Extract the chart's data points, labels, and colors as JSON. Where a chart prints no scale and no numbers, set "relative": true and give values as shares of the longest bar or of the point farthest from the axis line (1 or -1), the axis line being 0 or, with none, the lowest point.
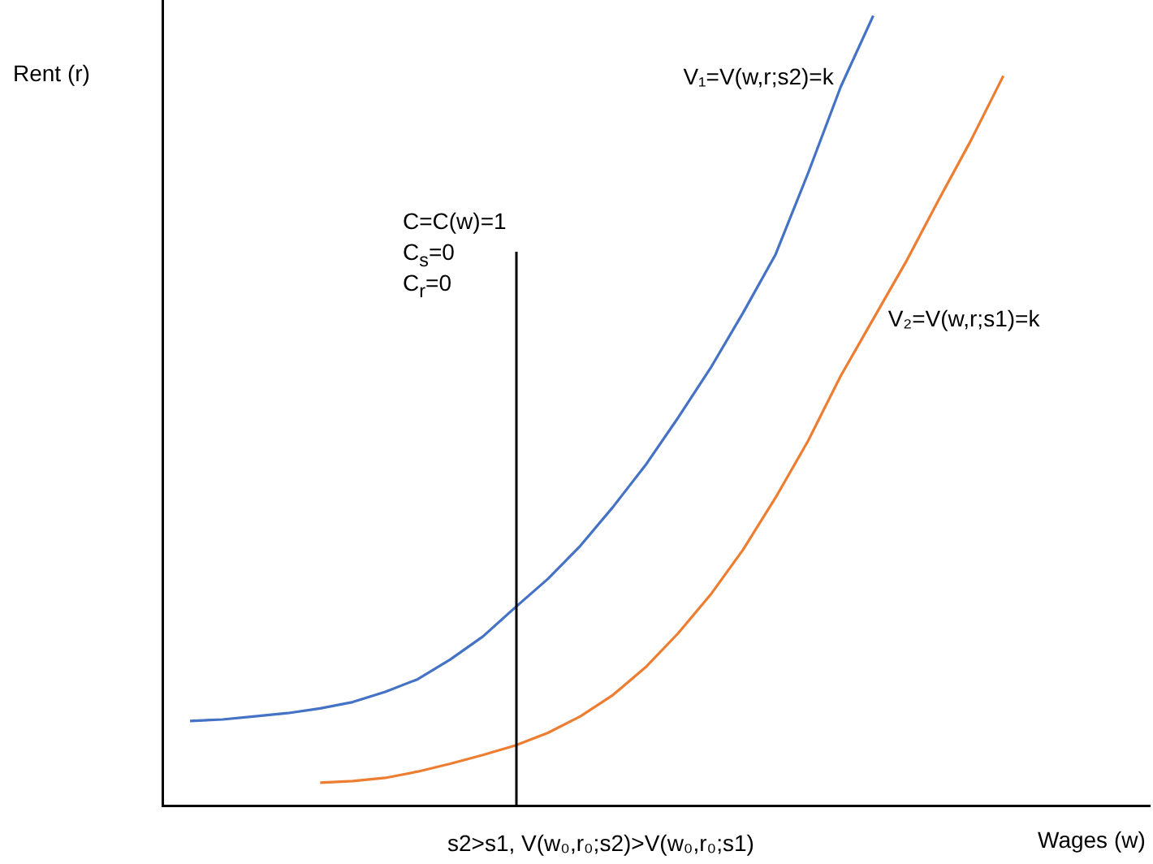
{
  "chart_data": {
    "type": "line",
    "relative": true,
    "xlabel": "Wages (w)",
    "ylabel": "Rent (r)",
    "categories": [
      null,
      null,
      null,
      null,
      null,
      null,
      null,
      null,
      null,
      null,
      null,
      null,
      null,
      null,
      null,
      null,
      null,
      null,
      null,
      null,
      null,
      null,
      null,
      null,
      null,
      null
    ],
    "series": [
      {
        "name": "V₁=V(w,r;s2)=k",
        "color": "#4472c4",
        "values": [
          0.107,
          0.109,
          0.113,
          0.117,
          0.123,
          0.131,
          0.144,
          0.16,
          0.185,
          0.214,
          0.251,
          0.287,
          0.329,
          0.378,
          0.431,
          0.491,
          0.554,
          0.624,
          0.698,
          0.801,
          0.91,
          1.0,
          null,
          null,
          null,
          null
        ]
      },
      {
        "name": "V₂=V(w,r;s1)=k",
        "color": "#ed7d31",
        "values": [
          null,
          null,
          null,
          null,
          0.029,
          0.031,
          0.035,
          0.043,
          0.053,
          0.064,
          0.076,
          0.092,
          0.113,
          0.14,
          0.175,
          0.218,
          0.267,
          0.324,
          0.39,
          0.462,
          0.544,
          0.616,
          0.688,
          0.766,
          0.842,
          0.924
        ]
      }
    ],
    "annotations": [
      "C=C(w)=1",
      "C$_{s}$=0",
      "C$_{r}$=0",
      "s2>s1, V(w₀,r₀;s2)>V(w₀,r₀;s1)"
    ],
    "grid": false,
    "legend": false,
    "marker": "none",
    "line_style": "solid"
  }
}
